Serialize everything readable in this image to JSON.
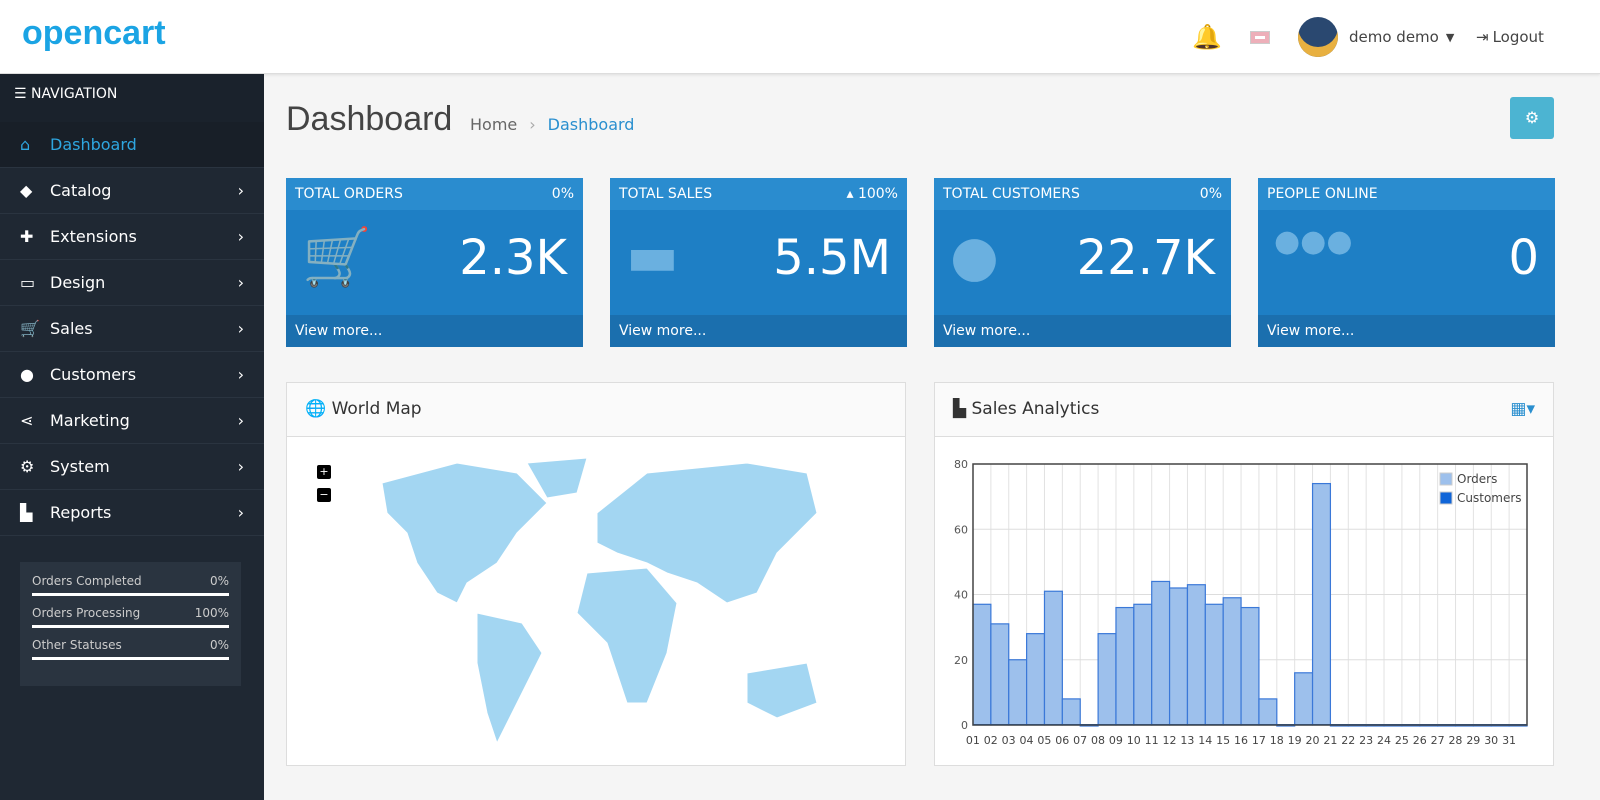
{
  "header": {
    "logo": "opencart",
    "user": "demo demo",
    "logout": "Logout"
  },
  "sidebar": {
    "title": "NAVIGATION",
    "items": [
      {
        "label": "Dashboard",
        "icon": "home-icon",
        "glyph": "⌂"
      },
      {
        "label": "Catalog",
        "icon": "tag-icon",
        "glyph": "◆"
      },
      {
        "label": "Extensions",
        "icon": "puzzle-icon",
        "glyph": "✚"
      },
      {
        "label": "Design",
        "icon": "monitor-icon",
        "glyph": "▭"
      },
      {
        "label": "Sales",
        "icon": "cart-icon",
        "glyph": "🛒"
      },
      {
        "label": "Customers",
        "icon": "user-icon",
        "glyph": "●"
      },
      {
        "label": "Marketing",
        "icon": "share-icon",
        "glyph": "⋖"
      },
      {
        "label": "System",
        "icon": "cog-icon",
        "glyph": "⚙"
      },
      {
        "label": "Reports",
        "icon": "bar-chart-icon",
        "glyph": "▙"
      }
    ],
    "stats": [
      {
        "label": "Orders Completed",
        "value": "0%",
        "fill": 0
      },
      {
        "label": "Orders Processing",
        "value": "100%",
        "fill": 100
      },
      {
        "label": "Other Statuses",
        "value": "0%",
        "fill": 0
      }
    ]
  },
  "page": {
    "title": "Dashboard",
    "breadcrumb": [
      "Home",
      "Dashboard"
    ]
  },
  "tiles": [
    {
      "title": "TOTAL ORDERS",
      "pct": "0%",
      "value": "2.3K",
      "more": "View more...",
      "glyph": "🛒"
    },
    {
      "title": "TOTAL SALES",
      "pct": "▴ 100%",
      "value": "5.5M",
      "more": "View more...",
      "glyph": "▬"
    },
    {
      "title": "TOTAL CUSTOMERS",
      "pct": "0%",
      "value": "22.7K",
      "more": "View more...",
      "glyph": "●"
    },
    {
      "title": "PEOPLE ONLINE",
      "pct": "",
      "value": "0",
      "more": "View more...",
      "glyph": "●●●"
    }
  ],
  "worldmap": {
    "title": "World Map",
    "zoom_in": "+",
    "zoom_out": "−"
  },
  "analytics": {
    "title": "Sales Analytics"
  },
  "chart_data": {
    "type": "bar",
    "categories": [
      "01",
      "02",
      "03",
      "04",
      "05",
      "06",
      "07",
      "08",
      "09",
      "10",
      "11",
      "12",
      "13",
      "14",
      "15",
      "16",
      "17",
      "18",
      "19",
      "20",
      "21",
      "22",
      "23",
      "24",
      "25",
      "26",
      "27",
      "28",
      "29",
      "30",
      "31"
    ],
    "series": [
      {
        "name": "Orders",
        "color": "#9dc0ec",
        "values": [
          37,
          31,
          20,
          28,
          41,
          8,
          0,
          28,
          36,
          37,
          44,
          42,
          43,
          37,
          39,
          36,
          8,
          0,
          16,
          74,
          0,
          0,
          0,
          0,
          0,
          0,
          0,
          0,
          0,
          0,
          0
        ]
      },
      {
        "name": "Customers",
        "color": "#1065d8",
        "values": [
          0,
          0,
          0,
          0,
          0,
          0,
          0,
          0,
          0,
          0,
          0,
          0,
          0,
          0,
          0,
          0,
          0,
          0,
          0,
          0,
          0,
          0,
          0,
          0,
          0,
          0,
          0,
          0,
          0,
          0,
          0
        ]
      }
    ],
    "ylim": [
      0,
      80
    ],
    "yticks": [
      0,
      20,
      40,
      60,
      80
    ],
    "grid": true,
    "legend": "top-right"
  }
}
